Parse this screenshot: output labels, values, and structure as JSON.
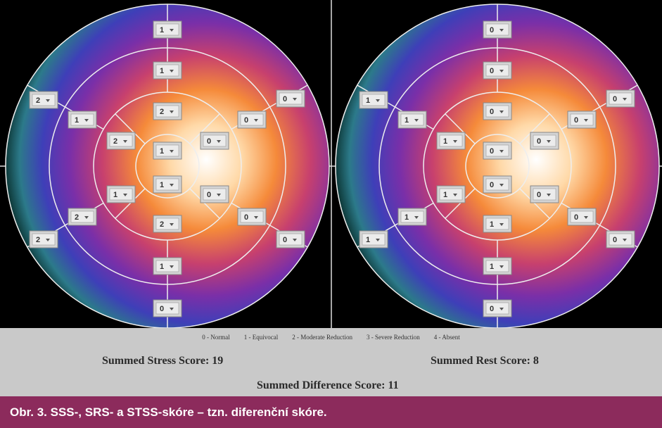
{
  "stress_map": {
    "scores": [
      1,
      1,
      2,
      1,
      1,
      2,
      1,
      0,
      2,
      1,
      2,
      1,
      2,
      2,
      0,
      0,
      0,
      0,
      0,
      0
    ]
  },
  "rest_map": {
    "scores": [
      0,
      0,
      0,
      0,
      0,
      1,
      1,
      0,
      1,
      1,
      1,
      1,
      1,
      1,
      0,
      0,
      0,
      0,
      0,
      0
    ]
  },
  "legend": [
    "0 - Normal",
    "1 - Equivocal",
    "2 - Moderate Reduction",
    "3 - Severe Reduction",
    "4 - Absent"
  ],
  "summed_stress": {
    "label": "Summed Stress Score:",
    "value": 19
  },
  "summed_rest": {
    "label": "Summed Rest Score:",
    "value": 8
  },
  "summed_difference": {
    "label": "Summed Difference Score:",
    "value": 11
  },
  "caption": "Obr. 3. SSS-, SRS- a STSS-skóre – tzn. diferenční skóre."
}
